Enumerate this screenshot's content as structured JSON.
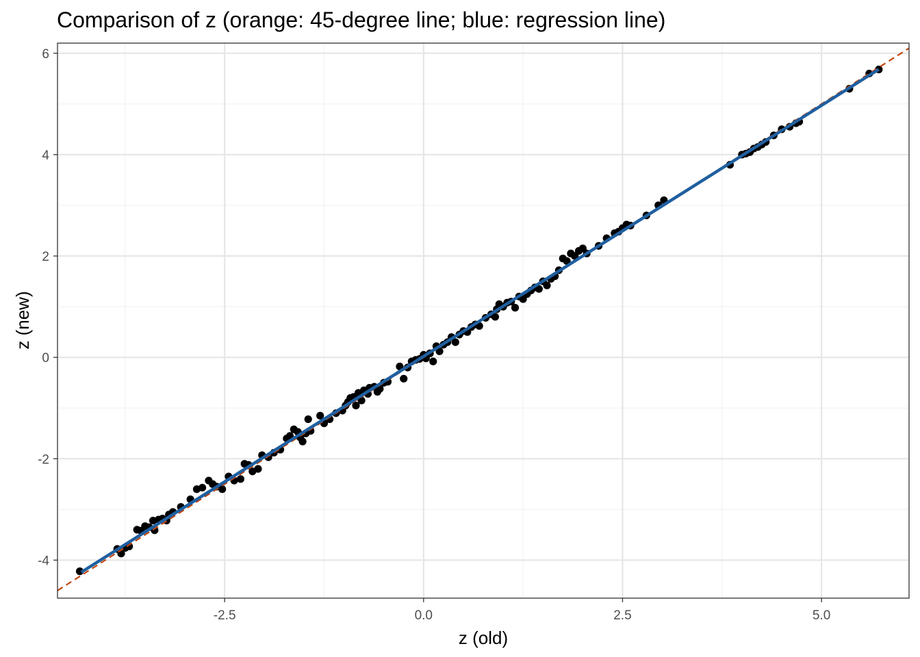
{
  "chart_data": {
    "type": "scatter",
    "title": "Comparison of z (orange: 45-degree line; blue: regression line)",
    "xlabel": "z (old)",
    "ylabel": "z (new)",
    "xlim": [
      -4.6,
      6.1
    ],
    "ylim": [
      -4.75,
      6.2
    ],
    "x_ticks": [
      -2.5,
      0.0,
      2.5,
      5.0
    ],
    "x_tick_labels": [
      "-2.5",
      "0.0",
      "2.5",
      "5.0"
    ],
    "y_ticks": [
      -4,
      -2,
      0,
      2,
      4,
      6
    ],
    "y_tick_labels": [
      "-4",
      "-2",
      "0",
      "2",
      "4",
      "6"
    ],
    "grid": true,
    "colors": {
      "points": "#000000",
      "identity_line": "#c1440e",
      "regression_line": "#1f5fa0",
      "grid_major": "#e6e6e6",
      "grid_minor": "#f2f2f2",
      "panel_border": "#333333"
    },
    "identity_line": {
      "slope": 1,
      "intercept": 0,
      "style": "dashed"
    },
    "regression_line": {
      "slope": 0.99,
      "intercept": 0.02,
      "x_range": [
        -4.3,
        5.72
      ]
    },
    "points": [
      [
        -4.32,
        -4.22
      ],
      [
        -3.85,
        -3.78
      ],
      [
        -3.8,
        -3.87
      ],
      [
        -3.75,
        -3.76
      ],
      [
        -3.7,
        -3.73
      ],
      [
        -3.6,
        -3.4
      ],
      [
        -3.55,
        -3.42
      ],
      [
        -3.5,
        -3.33
      ],
      [
        -3.45,
        -3.35
      ],
      [
        -3.4,
        -3.22
      ],
      [
        -3.38,
        -3.41
      ],
      [
        -3.33,
        -3.2
      ],
      [
        -3.28,
        -3.18
      ],
      [
        -3.23,
        -3.22
      ],
      [
        -3.2,
        -3.1
      ],
      [
        -3.15,
        -3.05
      ],
      [
        -3.05,
        -2.95
      ],
      [
        -2.93,
        -2.8
      ],
      [
        -2.85,
        -2.6
      ],
      [
        -2.78,
        -2.57
      ],
      [
        -2.7,
        -2.43
      ],
      [
        -2.65,
        -2.5
      ],
      [
        -2.6,
        -2.55
      ],
      [
        -2.53,
        -2.6
      ],
      [
        -2.45,
        -2.35
      ],
      [
        -2.38,
        -2.43
      ],
      [
        -2.3,
        -2.4
      ],
      [
        -2.25,
        -2.1
      ],
      [
        -2.2,
        -2.12
      ],
      [
        -2.15,
        -2.25
      ],
      [
        -2.08,
        -2.2
      ],
      [
        -2.03,
        -1.93
      ],
      [
        -1.95,
        -1.97
      ],
      [
        -1.88,
        -1.88
      ],
      [
        -1.8,
        -1.82
      ],
      [
        -1.72,
        -1.6
      ],
      [
        -1.68,
        -1.55
      ],
      [
        -1.63,
        -1.42
      ],
      [
        -1.58,
        -1.47
      ],
      [
        -1.55,
        -1.58
      ],
      [
        -1.52,
        -1.66
      ],
      [
        -1.48,
        -1.5
      ],
      [
        -1.45,
        -1.22
      ],
      [
        -1.42,
        -1.45
      ],
      [
        -1.3,
        -1.15
      ],
      [
        -1.25,
        -1.3
      ],
      [
        -1.18,
        -1.22
      ],
      [
        -1.1,
        -1.1
      ],
      [
        -1.02,
        -1.05
      ],
      [
        -0.98,
        -0.95
      ],
      [
        -0.95,
        -0.88
      ],
      [
        -0.92,
        -0.8
      ],
      [
        -0.88,
        -0.78
      ],
      [
        -0.85,
        -0.95
      ],
      [
        -0.82,
        -0.7
      ],
      [
        -0.78,
        -0.85
      ],
      [
        -0.75,
        -0.65
      ],
      [
        -0.7,
        -0.72
      ],
      [
        -0.68,
        -0.6
      ],
      [
        -0.62,
        -0.58
      ],
      [
        -0.58,
        -0.68
      ],
      [
        -0.55,
        -0.62
      ],
      [
        -0.5,
        -0.5
      ],
      [
        -0.45,
        -0.48
      ],
      [
        -0.3,
        -0.18
      ],
      [
        -0.25,
        -0.42
      ],
      [
        -0.2,
        -0.2
      ],
      [
        -0.15,
        -0.08
      ],
      [
        -0.1,
        -0.05
      ],
      [
        -0.05,
        -0.03
      ],
      [
        0.0,
        0.05
      ],
      [
        0.03,
        -0.02
      ],
      [
        0.08,
        0.08
      ],
      [
        0.12,
        -0.08
      ],
      [
        0.16,
        0.22
      ],
      [
        0.2,
        0.12
      ],
      [
        0.25,
        0.25
      ],
      [
        0.3,
        0.3
      ],
      [
        0.35,
        0.4
      ],
      [
        0.4,
        0.3
      ],
      [
        0.45,
        0.45
      ],
      [
        0.5,
        0.52
      ],
      [
        0.55,
        0.5
      ],
      [
        0.6,
        0.6
      ],
      [
        0.65,
        0.65
      ],
      [
        0.7,
        0.62
      ],
      [
        0.78,
        0.78
      ],
      [
        0.85,
        0.85
      ],
      [
        0.9,
        0.8
      ],
      [
        0.92,
        0.95
      ],
      [
        0.95,
        1.05
      ],
      [
        1.0,
        1.0
      ],
      [
        1.05,
        1.08
      ],
      [
        1.1,
        1.1
      ],
      [
        1.15,
        0.98
      ],
      [
        1.2,
        1.2
      ],
      [
        1.25,
        1.15
      ],
      [
        1.3,
        1.25
      ],
      [
        1.35,
        1.32
      ],
      [
        1.4,
        1.38
      ],
      [
        1.45,
        1.35
      ],
      [
        1.5,
        1.5
      ],
      [
        1.55,
        1.42
      ],
      [
        1.6,
        1.55
      ],
      [
        1.65,
        1.6
      ],
      [
        1.7,
        1.72
      ],
      [
        1.75,
        1.95
      ],
      [
        1.8,
        1.9
      ],
      [
        1.85,
        2.05
      ],
      [
        1.9,
        2.0
      ],
      [
        1.95,
        2.1
      ],
      [
        2.0,
        2.15
      ],
      [
        2.05,
        2.05
      ],
      [
        2.2,
        2.2
      ],
      [
        2.3,
        2.35
      ],
      [
        2.4,
        2.45
      ],
      [
        2.45,
        2.48
      ],
      [
        2.5,
        2.55
      ],
      [
        2.55,
        2.62
      ],
      [
        2.6,
        2.6
      ],
      [
        2.8,
        2.8
      ],
      [
        2.95,
        3.0
      ],
      [
        3.02,
        3.1
      ],
      [
        3.85,
        3.8
      ],
      [
        4.0,
        4.0
      ],
      [
        4.05,
        4.02
      ],
      [
        4.1,
        4.05
      ],
      [
        4.15,
        4.12
      ],
      [
        4.2,
        4.15
      ],
      [
        4.25,
        4.2
      ],
      [
        4.3,
        4.25
      ],
      [
        4.4,
        4.38
      ],
      [
        4.5,
        4.5
      ],
      [
        4.6,
        4.55
      ],
      [
        4.68,
        4.62
      ],
      [
        4.72,
        4.65
      ],
      [
        5.35,
        5.3
      ],
      [
        5.6,
        5.6
      ],
      [
        5.72,
        5.68
      ]
    ]
  }
}
